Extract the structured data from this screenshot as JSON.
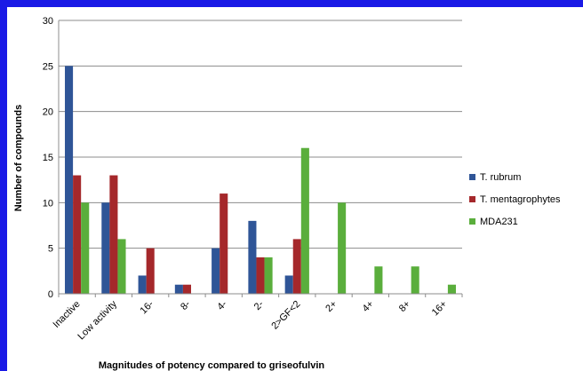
{
  "chart_data": {
    "type": "bar",
    "title": "",
    "xlabel": "Magnitudes of potency compared to griseofulvin",
    "ylabel": "Number of compounds",
    "ylim": [
      0,
      30
    ],
    "yticks": [
      0,
      5,
      10,
      15,
      20,
      25,
      30
    ],
    "grid": true,
    "legend_position": "right",
    "categories": [
      "Inactive",
      "Low activity",
      "16-",
      "8-",
      "4-",
      "2-",
      "2>GF<2",
      "2+",
      "4+",
      "8+",
      "16+"
    ],
    "series": [
      {
        "name": "T. rubrum",
        "color": "#2f5597",
        "values": [
          25,
          10,
          2,
          1,
          5,
          8,
          2,
          0,
          0,
          0,
          0
        ]
      },
      {
        "name": "T. mentagrophytes",
        "color": "#a5282b",
        "values": [
          13,
          13,
          5,
          1,
          11,
          4,
          6,
          0,
          0,
          0,
          0
        ]
      },
      {
        "name": "MDA231",
        "color": "#5aae3c",
        "values": [
          10,
          6,
          0,
          0,
          0,
          4,
          16,
          10,
          3,
          3,
          1
        ]
      }
    ]
  }
}
